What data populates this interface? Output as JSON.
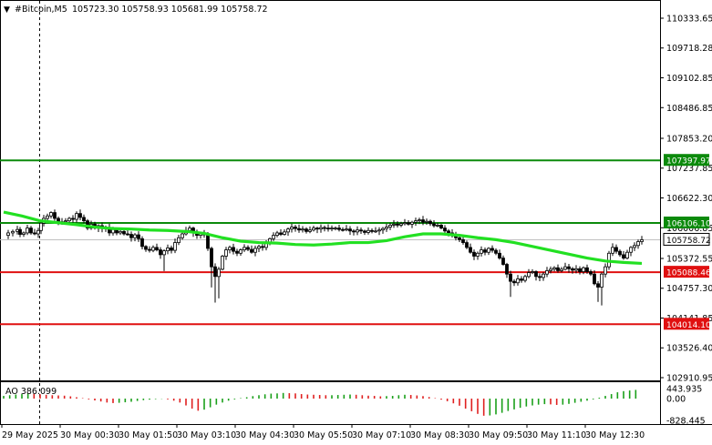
{
  "header": {
    "symbol": "#Bitcoin,M5",
    "ohlc": "105723.30 105758.93 105681.99 105758.72"
  },
  "chart_data": {
    "type": "candlestick",
    "ylim": [
      102910.95,
      110650
    ],
    "price_ticks": [
      "110333.65",
      "109718.28",
      "109102.85",
      "108486.85",
      "107853.20",
      "107237.85",
      "106622.30",
      "106006.85",
      "105372.55",
      "104757.30",
      "104141.85",
      "103526.40",
      "102910.95"
    ],
    "levels": [
      {
        "label": "107397.97",
        "value": 107397.97,
        "color": "#0b8a0b"
      },
      {
        "label": "106106.10",
        "value": 106106.1,
        "color": "#0b8a0b"
      },
      {
        "label": "105088.46",
        "value": 105088.46,
        "color": "#e01010"
      },
      {
        "label": "104014.10",
        "value": 104014.1,
        "color": "#e01010"
      }
    ],
    "current_price": {
      "label": "105758.72",
      "value": 105758.72
    },
    "x_labels": [
      "29 May 2025",
      "30 May 00:30",
      "30 May 01:50",
      "30 May 03:10",
      "30 May 04:30",
      "30 May 05:50",
      "30 May 07:10",
      "30 May 08:30",
      "30 May 09:50",
      "30 May 11:10",
      "30 May 12:30"
    ],
    "close_path": [
      [
        0,
        105850
      ],
      [
        5,
        105900
      ],
      [
        10,
        105930
      ],
      [
        15,
        105970
      ],
      [
        18,
        105870
      ],
      [
        22,
        105900
      ],
      [
        26,
        106000
      ],
      [
        30,
        105900
      ],
      [
        34,
        105880
      ],
      [
        38,
        105950
      ],
      [
        41,
        106100
      ],
      [
        44,
        106200
      ],
      [
        48,
        106250
      ],
      [
        52,
        106320
      ],
      [
        56,
        106200
      ],
      [
        60,
        106100
      ],
      [
        64,
        106130
      ],
      [
        68,
        106150
      ],
      [
        72,
        106200
      ],
      [
        76,
        106180
      ],
      [
        80,
        106300
      ],
      [
        84,
        106220
      ],
      [
        88,
        106150
      ],
      [
        92,
        106000
      ],
      [
        96,
        106080
      ],
      [
        100,
        106000
      ],
      [
        104,
        106050
      ],
      [
        108,
        105990
      ],
      [
        112,
        106010
      ],
      [
        116,
        105900
      ],
      [
        120,
        105970
      ],
      [
        124,
        105900
      ],
      [
        128,
        105930
      ],
      [
        132,
        105880
      ],
      [
        136,
        105870
      ],
      [
        140,
        105800
      ],
      [
        144,
        105860
      ],
      [
        148,
        105780
      ],
      [
        152,
        105620
      ],
      [
        156,
        105560
      ],
      [
        160,
        105540
      ],
      [
        164,
        105600
      ],
      [
        168,
        105550
      ],
      [
        172,
        105450
      ],
      [
        176,
        105530
      ],
      [
        180,
        105590
      ],
      [
        184,
        105540
      ],
      [
        188,
        105700
      ],
      [
        192,
        105800
      ],
      [
        196,
        105880
      ],
      [
        200,
        105950
      ],
      [
        204,
        106000
      ],
      [
        208,
        105900
      ],
      [
        212,
        105850
      ],
      [
        216,
        105880
      ],
      [
        220,
        105860
      ],
      [
        224,
        105580
      ],
      [
        228,
        105200
      ],
      [
        232,
        105000
      ],
      [
        236,
        105150
      ],
      [
        240,
        105420
      ],
      [
        244,
        105550
      ],
      [
        248,
        105600
      ],
      [
        252,
        105520
      ],
      [
        256,
        105480
      ],
      [
        260,
        105550
      ],
      [
        264,
        105600
      ],
      [
        268,
        105560
      ],
      [
        272,
        105500
      ],
      [
        276,
        105580
      ],
      [
        280,
        105620
      ],
      [
        284,
        105600
      ],
      [
        288,
        105700
      ],
      [
        292,
        105780
      ],
      [
        296,
        105850
      ],
      [
        300,
        105900
      ],
      [
        304,
        105870
      ],
      [
        308,
        105920
      ],
      [
        312,
        105980
      ],
      [
        316,
        106020
      ],
      [
        320,
        105990
      ],
      [
        324,
        105960
      ],
      [
        328,
        105980
      ],
      [
        332,
        105930
      ],
      [
        336,
        105960
      ],
      [
        340,
        106000
      ],
      [
        344,
        105980
      ],
      [
        348,
        106010
      ],
      [
        352,
        106000
      ],
      [
        356,
        105990
      ],
      [
        360,
        106000
      ],
      [
        364,
        106000
      ],
      [
        368,
        105970
      ],
      [
        372,
        105960
      ],
      [
        376,
        105980
      ],
      [
        380,
        105940
      ],
      [
        384,
        105920
      ],
      [
        388,
        105960
      ],
      [
        392,
        105940
      ],
      [
        396,
        105910
      ],
      [
        400,
        105950
      ],
      [
        404,
        105930
      ],
      [
        408,
        105940
      ],
      [
        412,
        105960
      ],
      [
        416,
        105990
      ],
      [
        420,
        106020
      ],
      [
        424,
        106060
      ],
      [
        428,
        106080
      ],
      [
        432,
        106060
      ],
      [
        436,
        106090
      ],
      [
        440,
        106110
      ],
      [
        444,
        106080
      ],
      [
        448,
        106120
      ],
      [
        452,
        106150
      ],
      [
        456,
        106170
      ],
      [
        460,
        106120
      ],
      [
        464,
        106140
      ],
      [
        468,
        106090
      ],
      [
        472,
        106050
      ],
      [
        476,
        106060
      ],
      [
        480,
        106000
      ],
      [
        484,
        105940
      ],
      [
        488,
        105900
      ],
      [
        492,
        105870
      ],
      [
        496,
        105800
      ],
      [
        500,
        105760
      ],
      [
        504,
        105700
      ],
      [
        508,
        105600
      ],
      [
        512,
        105500
      ],
      [
        516,
        105420
      ],
      [
        520,
        105480
      ],
      [
        524,
        105550
      ],
      [
        528,
        105500
      ],
      [
        532,
        105580
      ],
      [
        536,
        105540
      ],
      [
        540,
        105480
      ],
      [
        544,
        105380
      ],
      [
        548,
        105250
      ],
      [
        552,
        105050
      ],
      [
        556,
        104900
      ],
      [
        560,
        104870
      ],
      [
        564,
        104950
      ],
      [
        568,
        104920
      ],
      [
        572,
        105000
      ],
      [
        576,
        105080
      ],
      [
        580,
        105100
      ],
      [
        584,
        105000
      ],
      [
        588,
        104980
      ],
      [
        592,
        105050
      ],
      [
        596,
        105120
      ],
      [
        600,
        105150
      ],
      [
        604,
        105180
      ],
      [
        608,
        105120
      ],
      [
        612,
        105150
      ],
      [
        616,
        105200
      ],
      [
        620,
        105160
      ],
      [
        624,
        105130
      ],
      [
        628,
        105160
      ],
      [
        632,
        105100
      ],
      [
        636,
        105180
      ],
      [
        640,
        105100
      ],
      [
        644,
        105050
      ],
      [
        648,
        104850
      ],
      [
        652,
        104780
      ],
      [
        656,
        105050
      ],
      [
        660,
        105200
      ],
      [
        664,
        105480
      ],
      [
        668,
        105600
      ],
      [
        672,
        105520
      ],
      [
        676,
        105450
      ],
      [
        680,
        105380
      ],
      [
        684,
        105500
      ],
      [
        688,
        105600
      ],
      [
        692,
        105640
      ],
      [
        696,
        105720
      ],
      [
        700,
        105758.72
      ]
    ],
    "ma_path": [
      [
        0,
        106330
      ],
      [
        20,
        106250
      ],
      [
        40,
        106150
      ],
      [
        60,
        106110
      ],
      [
        80,
        106070
      ],
      [
        100,
        106020
      ],
      [
        120,
        105990
      ],
      [
        140,
        105980
      ],
      [
        160,
        105960
      ],
      [
        180,
        105950
      ],
      [
        200,
        105930
      ],
      [
        220,
        105890
      ],
      [
        240,
        105800
      ],
      [
        260,
        105730
      ],
      [
        280,
        105700
      ],
      [
        300,
        105690
      ],
      [
        320,
        105660
      ],
      [
        340,
        105650
      ],
      [
        360,
        105670
      ],
      [
        380,
        105700
      ],
      [
        400,
        105700
      ],
      [
        420,
        105740
      ],
      [
        440,
        105820
      ],
      [
        460,
        105880
      ],
      [
        480,
        105880
      ],
      [
        500,
        105850
      ],
      [
        520,
        105800
      ],
      [
        540,
        105760
      ],
      [
        560,
        105700
      ],
      [
        580,
        105620
      ],
      [
        600,
        105540
      ],
      [
        620,
        105460
      ],
      [
        640,
        105380
      ],
      [
        660,
        105320
      ],
      [
        680,
        105290
      ],
      [
        700,
        105270
      ]
    ],
    "ao_label": "AO 386.099",
    "ao_ticks": [
      "443.935",
      "0.00",
      "-828.445"
    ],
    "ao_ylim": [
      -828.445,
      443.935
    ],
    "ao_values": [
      120,
      150,
      180,
      200,
      220,
      210,
      190,
      170,
      150,
      140,
      130,
      100,
      60,
      20,
      -30,
      -70,
      -110,
      -150,
      -170,
      -160,
      -140,
      -120,
      -90,
      -60,
      -40,
      -20,
      -10,
      -30,
      -80,
      -150,
      -260,
      -380,
      -460,
      -420,
      -330,
      -230,
      -150,
      -80,
      -30,
      20,
      60,
      110,
      150,
      190,
      220,
      230,
      250,
      240,
      230,
      200,
      180,
      170,
      160,
      150,
      150,
      160,
      170,
      180,
      170,
      150,
      130,
      120,
      100,
      110,
      120,
      150,
      170,
      160,
      140,
      110,
      70,
      20,
      -40,
      -100,
      -180,
      -270,
      -380,
      -480,
      -580,
      -650,
      -640,
      -600,
      -540,
      -470,
      -410,
      -350,
      -300,
      -260,
      -230,
      -210,
      -220,
      -240,
      -230,
      -200,
      -160,
      -120,
      -80,
      -30,
      40,
      120,
      200,
      280,
      330,
      360,
      386
    ]
  }
}
